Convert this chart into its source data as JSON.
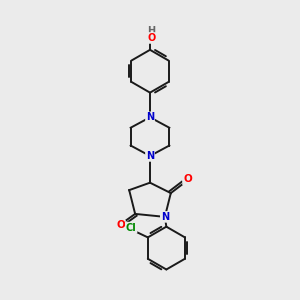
{
  "bg_color": "#ebebeb",
  "atom_colors": {
    "C": "#000000",
    "N": "#0000cc",
    "O": "#ff0000",
    "Cl": "#008800",
    "H": "#666666"
  },
  "bond_color": "#1a1a1a",
  "bond_width": 1.4,
  "title": "",
  "figsize": [
    3.0,
    3.0
  ],
  "dpi": 100
}
